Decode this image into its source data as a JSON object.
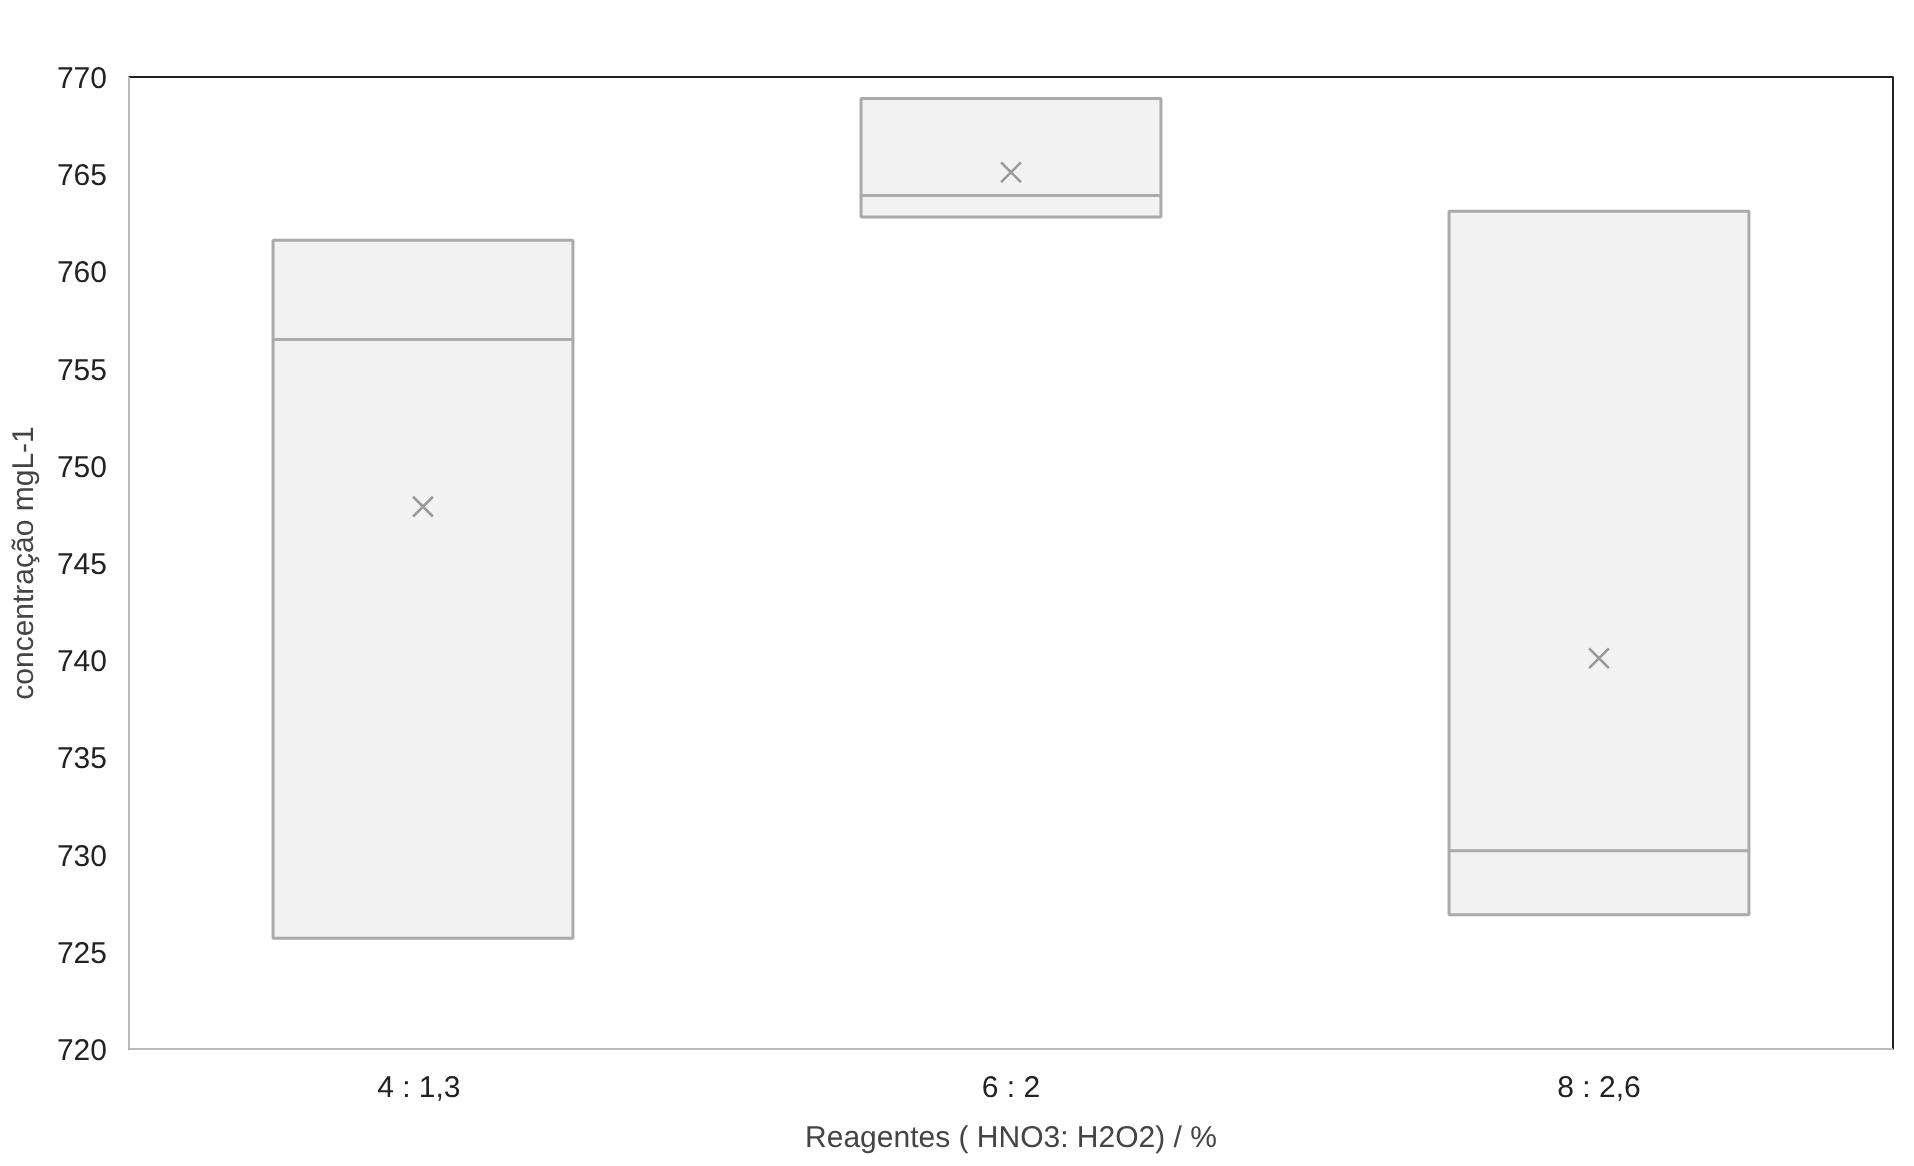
{
  "chart_data": {
    "type": "box",
    "xlabel": "Reagentes ( HNO3: H2O2) / %",
    "ylabel": "concentração mgL-1",
    "categories": [
      "4  : 1,3",
      "6 : 2",
      "8 : 2,6"
    ],
    "boxes": [
      {
        "low": 725.7,
        "q1": 725.7,
        "median": 756.5,
        "q3": 761.6,
        "high": 761.6,
        "mean": 747.9
      },
      {
        "low": 762.8,
        "q1": 762.8,
        "median": 763.9,
        "q3": 768.9,
        "high": 768.9,
        "mean": 765.1
      },
      {
        "low": 726.9,
        "q1": 726.9,
        "median": 730.2,
        "q3": 763.1,
        "high": 763.1,
        "mean": 740.1
      }
    ],
    "color": "#f2f2f2",
    "ylim": [
      720,
      770
    ],
    "yticks": [
      720,
      725,
      730,
      735,
      740,
      745,
      750,
      755,
      760,
      765,
      770
    ],
    "grid": false,
    "marker": "cross"
  }
}
